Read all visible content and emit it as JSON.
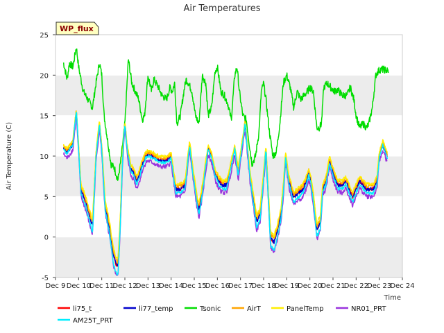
{
  "chart_data": {
    "type": "line",
    "title": "Air Temperatures",
    "xlabel": "Time",
    "ylabel": "Air Temperature (C)",
    "badge": "WP_flux",
    "xlim": [
      9,
      24
    ],
    "ylim": [
      -5,
      25
    ],
    "x_ticks": [
      {
        "v": 9,
        "label": "Dec 9"
      },
      {
        "v": 10,
        "label": "Dec 10"
      },
      {
        "v": 11,
        "label": "Dec 11"
      },
      {
        "v": 12,
        "label": "Dec 12"
      },
      {
        "v": 13,
        "label": "Dec 13"
      },
      {
        "v": 14,
        "label": "Dec 14"
      },
      {
        "v": 15,
        "label": "Dec 15"
      },
      {
        "v": 16,
        "label": "Dec 16"
      },
      {
        "v": 17,
        "label": "Dec 17"
      },
      {
        "v": 18,
        "label": "Dec 18"
      },
      {
        "v": 19,
        "label": "Dec 19"
      },
      {
        "v": 20,
        "label": "Dec 20"
      },
      {
        "v": 21,
        "label": "Dec 21"
      },
      {
        "v": 22,
        "label": "Dec 22"
      },
      {
        "v": 23,
        "label": "Dec 23"
      },
      {
        "v": 24,
        "label": "Dec 24"
      }
    ],
    "y_ticks": [
      {
        "v": -5,
        "label": "-5"
      },
      {
        "v": 0,
        "label": "0"
      },
      {
        "v": 5,
        "label": "5"
      },
      {
        "v": 10,
        "label": "10"
      },
      {
        "v": 15,
        "label": "15"
      },
      {
        "v": 20,
        "label": "20"
      },
      {
        "v": 25,
        "label": "25"
      }
    ],
    "background_bands": "alternating light gray every 5 units",
    "legend_position": "bottom",
    "base_air_temperature": {
      "x": [
        9.35,
        9.5,
        9.75,
        9.9,
        10.0,
        10.1,
        10.3,
        10.45,
        10.6,
        10.75,
        10.9,
        11.0,
        11.15,
        11.35,
        11.5,
        11.6,
        11.7,
        11.8,
        11.9,
        12.0,
        12.1,
        12.25,
        12.4,
        12.5,
        12.6,
        12.75,
        12.9,
        13.0,
        13.2,
        13.5,
        13.8,
        14.0,
        14.2,
        14.4,
        14.6,
        14.8,
        14.95,
        15.1,
        15.2,
        15.3,
        15.45,
        15.6,
        15.75,
        15.9,
        16.05,
        16.2,
        16.4,
        16.6,
        16.75,
        16.9,
        17.0,
        17.2,
        17.4,
        17.55,
        17.7,
        17.85,
        17.95,
        18.1,
        18.3,
        18.45,
        18.6,
        18.75,
        18.85,
        18.95,
        19.1,
        19.3,
        19.5,
        19.7,
        19.85,
        19.95,
        20.05,
        20.15,
        20.3,
        20.45,
        20.55,
        20.7,
        20.85,
        21.0,
        21.2,
        21.4,
        21.55,
        21.7,
        21.85,
        22.0,
        22.15,
        22.3,
        22.45,
        22.6,
        22.75,
        22.9,
        23.0,
        23.15,
        23.35
      ],
      "y": [
        11,
        10.5,
        11.5,
        15.5,
        11,
        6,
        4.5,
        3,
        1.5,
        10,
        14,
        11,
        4,
        1,
        -2,
        -3,
        -3.5,
        2,
        10,
        14,
        11,
        8.5,
        8,
        7,
        7.5,
        9,
        10,
        10.2,
        10,
        9.5,
        9.5,
        10,
        6,
        6,
        6.5,
        11.5,
        8,
        5,
        3.5,
        5,
        8,
        11,
        10,
        8,
        7,
        6.5,
        6.5,
        9,
        11,
        8,
        10,
        14,
        8,
        5,
        2,
        3,
        6,
        11,
        0,
        -0.5,
        1,
        3,
        6,
        10,
        7,
        5,
        5.5,
        6,
        7,
        8,
        7,
        5,
        1,
        2,
        6,
        7,
        9.5,
        8,
        6.5,
        6.5,
        7,
        6,
        5,
        6,
        7,
        6.5,
        6,
        6,
        6,
        7,
        10,
        11.5,
        10
      ]
    },
    "tsonic": {
      "x": [
        9.35,
        9.5,
        9.6,
        9.75,
        9.9,
        10.0,
        10.2,
        10.4,
        10.6,
        10.75,
        10.9,
        11.0,
        11.1,
        11.25,
        11.4,
        11.55,
        11.7,
        11.85,
        12.0,
        12.15,
        12.3,
        12.45,
        12.6,
        12.75,
        12.85,
        13.0,
        13.15,
        13.25,
        13.45,
        13.6,
        13.8,
        13.95,
        14.05,
        14.15,
        14.25,
        14.4,
        14.55,
        14.65,
        14.75,
        14.9,
        15.05,
        15.2,
        15.35,
        15.5,
        15.6,
        15.75,
        15.9,
        16.0,
        16.15,
        16.3,
        16.45,
        16.6,
        16.75,
        16.85,
        16.95,
        17.1,
        17.25,
        17.4,
        17.5,
        17.65,
        17.8,
        17.9,
        18.0,
        18.1,
        18.25,
        18.4,
        18.55,
        18.7,
        18.85,
        19.0,
        19.15,
        19.3,
        19.45,
        19.6,
        19.75,
        19.9,
        20.0,
        20.15,
        20.3,
        20.4,
        20.5,
        20.6,
        20.75,
        20.9,
        21.05,
        21.2,
        21.4,
        21.6,
        21.75,
        21.9,
        22.0,
        22.15,
        22.3,
        22.45,
        22.55,
        22.7,
        22.85,
        22.95,
        23.05,
        23.2,
        23.4
      ],
      "y": [
        21.5,
        19.5,
        21.5,
        21,
        23.5,
        21,
        18,
        17,
        16,
        19,
        21.5,
        20,
        15,
        12,
        9,
        8.5,
        7,
        10,
        14,
        22,
        19,
        18,
        17,
        14.5,
        15,
        20,
        18,
        19.5,
        18.5,
        17.5,
        17,
        18.5,
        18,
        19,
        14,
        15,
        18,
        19.5,
        19,
        18,
        15,
        14,
        20,
        19,
        15,
        16,
        20.5,
        21,
        18,
        17.5,
        16.5,
        14.5,
        20,
        21,
        18,
        15,
        14.5,
        11,
        9,
        10,
        13,
        18,
        19,
        17,
        13,
        10,
        10.5,
        14,
        19,
        20,
        18.5,
        16,
        18,
        17,
        17.5,
        18,
        18.5,
        18,
        13.5,
        13.5,
        14,
        18.5,
        19,
        18.5,
        18,
        18.2,
        17.5,
        17.5,
        18.5,
        17,
        15,
        13.5,
        14,
        13.5,
        14,
        16,
        20,
        20.5,
        20.7,
        20.7,
        20.5
      ]
    },
    "series": [
      {
        "name": "li75_t",
        "color": "#ff0000",
        "offset": 0.0,
        "ampl": 1.02,
        "noise": 0.45
      },
      {
        "name": "li77_temp",
        "color": "#0000cc",
        "offset": -0.1,
        "ampl": 1.0,
        "noise": 0.45
      },
      {
        "name": "Tsonic",
        "color": "#00dd00"
      },
      {
        "name": "AirT",
        "color": "#ffa500",
        "offset": 0.3,
        "ampl": 1.0,
        "noise": 0.5
      },
      {
        "name": "PanelTemp",
        "color": "#ffee00",
        "offset": 0.5,
        "ampl": 0.98,
        "noise": 0.4
      },
      {
        "name": "NR01_PRT",
        "color": "#9933dd",
        "offset": -0.9,
        "ampl": 1.05,
        "noise": 0.6
      },
      {
        "name": "AM25T_PRT",
        "color": "#00eeff",
        "offset": -0.4,
        "ampl": 1.08,
        "noise": 0.4
      }
    ]
  }
}
